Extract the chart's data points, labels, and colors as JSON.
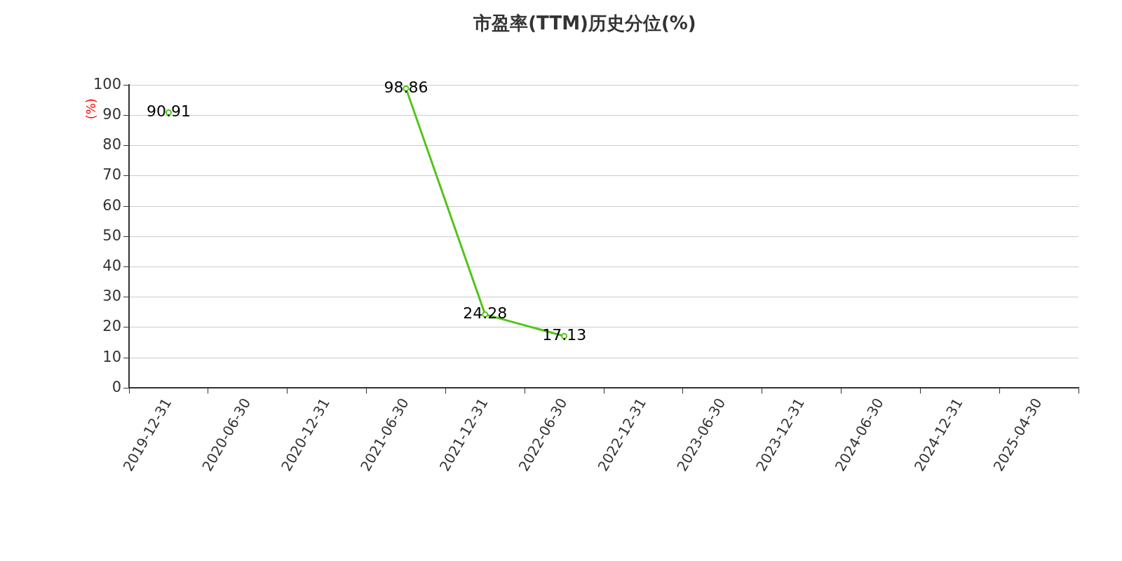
{
  "chart_data": {
    "type": "line",
    "title": "市盈率(TTM)历史分位(%)",
    "ylabel": "(%)",
    "categories": [
      "2019-12-31",
      "2020-06-30",
      "2020-12-31",
      "2021-06-30",
      "2021-12-31",
      "2022-06-30",
      "2022-12-31",
      "2023-06-30",
      "2023-12-31",
      "2024-06-30",
      "2024-12-31",
      "2025-04-30"
    ],
    "series": [
      {
        "color": "#52c41a",
        "values": [
          90.91,
          null,
          null,
          98.86,
          24.28,
          17.13,
          null,
          null,
          null,
          null,
          null,
          null
        ]
      }
    ],
    "ylim": [
      0,
      100
    ],
    "yticks": [
      0,
      10,
      20,
      30,
      40,
      50,
      60,
      70,
      80,
      90,
      100
    ],
    "grid": "y",
    "legend": false,
    "marker": "circle",
    "line_style": "solid",
    "data_labels": true
  }
}
